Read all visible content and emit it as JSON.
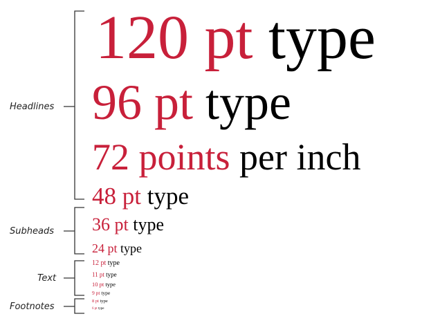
{
  "colors": {
    "accent": "#c8203a",
    "text": "#000000",
    "bracket": "#333333"
  },
  "categories": [
    {
      "label": "Headlines"
    },
    {
      "label": "Subheads"
    },
    {
      "label": "Text"
    },
    {
      "label": "Footnotes"
    }
  ],
  "samples": [
    {
      "red": "120 pt",
      "black": "type"
    },
    {
      "red": "96 pt",
      "black": "type"
    },
    {
      "red": "72 points",
      "black": "per inch"
    },
    {
      "red": "48 pt",
      "black": "type"
    },
    {
      "red": "36 pt",
      "black": "type"
    },
    {
      "red": "24 pt",
      "black": "type"
    },
    {
      "red": "12 pt",
      "black": "type"
    },
    {
      "red": "11 pt",
      "black": "type"
    },
    {
      "red": "10 pt",
      "black": "type"
    },
    {
      "red": "9 pt",
      "black": "type"
    },
    {
      "red": "8 pt",
      "black": "type"
    },
    {
      "red": "6 pt",
      "black": "type"
    }
  ]
}
